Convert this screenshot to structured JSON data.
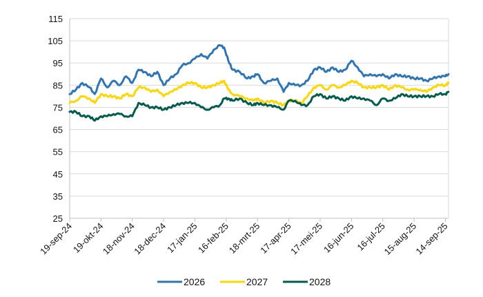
{
  "chart_data": {
    "type": "line",
    "title": "",
    "xlabel": "",
    "ylabel": "",
    "ylim": [
      25,
      115
    ],
    "yticks": [
      25,
      35,
      45,
      55,
      65,
      75,
      85,
      95,
      105,
      115
    ],
    "xlim": [
      "2024-09-19",
      "2025-09-17"
    ],
    "xtick_dates": [
      "2024-09-19",
      "2024-10-19",
      "2024-11-18",
      "2024-12-18",
      "2025-01-17",
      "2025-02-16",
      "2025-03-18",
      "2025-04-17",
      "2025-05-17",
      "2025-06-16",
      "2025-07-16",
      "2025-08-15",
      "2025-09-14"
    ],
    "xtick_labels": [
      "19-sep-24",
      "19-okt-24",
      "18-nov-24",
      "18-dec-24",
      "17-jan-25",
      "16-feb-25",
      "18-mrt-25",
      "17-apr-25",
      "17-mei-25",
      "16-jun-25",
      "16-jul-25",
      "15-aug-25",
      "14-sep-25"
    ],
    "grid": "horizontal",
    "legend_position": "bottom",
    "series": [
      {
        "name": "2026",
        "color": "#2e75b6",
        "points": [
          [
            "2024-09-19",
            81
          ],
          [
            "2024-09-25",
            83
          ],
          [
            "2024-10-01",
            86
          ],
          [
            "2024-10-08",
            84
          ],
          [
            "2024-10-13",
            81
          ],
          [
            "2024-10-19",
            88
          ],
          [
            "2024-10-25",
            84
          ],
          [
            "2024-10-31",
            87
          ],
          [
            "2024-11-06",
            85
          ],
          [
            "2024-11-12",
            89
          ],
          [
            "2024-11-18",
            86
          ],
          [
            "2024-11-24",
            92
          ],
          [
            "2024-11-30",
            91
          ],
          [
            "2024-12-06",
            89
          ],
          [
            "2024-12-12",
            91
          ],
          [
            "2024-12-18",
            85
          ],
          [
            "2024-12-24",
            88
          ],
          [
            "2024-12-30",
            90
          ],
          [
            "2025-01-05",
            94
          ],
          [
            "2025-01-11",
            95
          ],
          [
            "2025-01-17",
            97
          ],
          [
            "2025-01-23",
            99
          ],
          [
            "2025-01-29",
            97
          ],
          [
            "2025-02-04",
            101
          ],
          [
            "2025-02-10",
            103
          ],
          [
            "2025-02-14",
            102
          ],
          [
            "2025-02-18",
            96
          ],
          [
            "2025-02-22",
            92
          ],
          [
            "2025-03-01",
            91
          ],
          [
            "2025-03-08",
            88
          ],
          [
            "2025-03-14",
            89
          ],
          [
            "2025-03-18",
            90
          ],
          [
            "2025-03-24",
            86
          ],
          [
            "2025-03-31",
            87
          ],
          [
            "2025-04-06",
            88
          ],
          [
            "2025-04-12",
            82
          ],
          [
            "2025-04-17",
            86
          ],
          [
            "2025-04-23",
            85
          ],
          [
            "2025-04-29",
            85
          ],
          [
            "2025-05-05",
            87
          ],
          [
            "2025-05-11",
            92
          ],
          [
            "2025-05-17",
            93
          ],
          [
            "2025-05-23",
            91
          ],
          [
            "2025-05-29",
            93
          ],
          [
            "2025-06-04",
            91
          ],
          [
            "2025-06-10",
            92
          ],
          [
            "2025-06-16",
            96
          ],
          [
            "2025-06-22",
            93
          ],
          [
            "2025-06-28",
            89
          ],
          [
            "2025-07-04",
            90
          ],
          [
            "2025-07-10",
            89
          ],
          [
            "2025-07-16",
            90
          ],
          [
            "2025-07-22",
            88
          ],
          [
            "2025-07-28",
            90
          ],
          [
            "2025-08-03",
            89
          ],
          [
            "2025-08-09",
            89
          ],
          [
            "2025-08-15",
            88
          ],
          [
            "2025-08-21",
            88
          ],
          [
            "2025-08-27",
            87
          ],
          [
            "2025-09-02",
            88
          ],
          [
            "2025-09-08",
            89
          ],
          [
            "2025-09-14",
            89
          ],
          [
            "2025-09-17",
            90
          ]
        ]
      },
      {
        "name": "2027",
        "color": "#ffd700",
        "points": [
          [
            "2024-09-19",
            77
          ],
          [
            "2024-09-25",
            78
          ],
          [
            "2024-10-01",
            80
          ],
          [
            "2024-10-08",
            79
          ],
          [
            "2024-10-13",
            77
          ],
          [
            "2024-10-19",
            81
          ],
          [
            "2024-10-25",
            80
          ],
          [
            "2024-10-31",
            80
          ],
          [
            "2024-11-06",
            79
          ],
          [
            "2024-11-12",
            81
          ],
          [
            "2024-11-18",
            80
          ],
          [
            "2024-11-24",
            84
          ],
          [
            "2024-11-30",
            84
          ],
          [
            "2024-12-06",
            82
          ],
          [
            "2024-12-12",
            83
          ],
          [
            "2024-12-18",
            80
          ],
          [
            "2024-12-24",
            82
          ],
          [
            "2024-12-30",
            83
          ],
          [
            "2025-01-05",
            85
          ],
          [
            "2025-01-11",
            86
          ],
          [
            "2025-01-17",
            86
          ],
          [
            "2025-01-23",
            84
          ],
          [
            "2025-01-29",
            84
          ],
          [
            "2025-02-04",
            85
          ],
          [
            "2025-02-10",
            86
          ],
          [
            "2025-02-14",
            87
          ],
          [
            "2025-02-18",
            83
          ],
          [
            "2025-02-22",
            81
          ],
          [
            "2025-03-01",
            80
          ],
          [
            "2025-03-08",
            79
          ],
          [
            "2025-03-14",
            78
          ],
          [
            "2025-03-18",
            79
          ],
          [
            "2025-03-24",
            77
          ],
          [
            "2025-03-31",
            78
          ],
          [
            "2025-04-06",
            77
          ],
          [
            "2025-04-12",
            76
          ],
          [
            "2025-04-17",
            78
          ],
          [
            "2025-04-23",
            78
          ],
          [
            "2025-04-29",
            77
          ],
          [
            "2025-05-05",
            80
          ],
          [
            "2025-05-11",
            84
          ],
          [
            "2025-05-17",
            85
          ],
          [
            "2025-05-23",
            83
          ],
          [
            "2025-05-29",
            85
          ],
          [
            "2025-06-04",
            84
          ],
          [
            "2025-06-10",
            85
          ],
          [
            "2025-06-16",
            87
          ],
          [
            "2025-06-22",
            86
          ],
          [
            "2025-06-28",
            84
          ],
          [
            "2025-07-04",
            84
          ],
          [
            "2025-07-10",
            84
          ],
          [
            "2025-07-16",
            85
          ],
          [
            "2025-07-22",
            83
          ],
          [
            "2025-07-28",
            85
          ],
          [
            "2025-08-03",
            84
          ],
          [
            "2025-08-09",
            83
          ],
          [
            "2025-08-15",
            83
          ],
          [
            "2025-08-21",
            83
          ],
          [
            "2025-08-27",
            82
          ],
          [
            "2025-09-02",
            84
          ],
          [
            "2025-09-08",
            85
          ],
          [
            "2025-09-14",
            85
          ],
          [
            "2025-09-17",
            86
          ]
        ]
      },
      {
        "name": "2028",
        "color": "#005c4b",
        "points": [
          [
            "2024-09-19",
            73
          ],
          [
            "2024-09-25",
            73
          ],
          [
            "2024-10-01",
            71
          ],
          [
            "2024-10-08",
            71
          ],
          [
            "2024-10-13",
            69
          ],
          [
            "2024-10-19",
            71
          ],
          [
            "2024-10-25",
            71
          ],
          [
            "2024-10-31",
            72
          ],
          [
            "2024-11-06",
            72
          ],
          [
            "2024-11-12",
            71
          ],
          [
            "2024-11-18",
            71
          ],
          [
            "2024-11-24",
            77
          ],
          [
            "2024-11-30",
            76
          ],
          [
            "2024-12-06",
            75
          ],
          [
            "2024-12-12",
            75
          ],
          [
            "2024-12-18",
            74
          ],
          [
            "2024-12-24",
            75
          ],
          [
            "2024-12-30",
            76
          ],
          [
            "2025-01-05",
            77
          ],
          [
            "2025-01-11",
            77
          ],
          [
            "2025-01-17",
            77
          ],
          [
            "2025-01-23",
            75
          ],
          [
            "2025-01-29",
            74
          ],
          [
            "2025-02-04",
            75
          ],
          [
            "2025-02-10",
            76
          ],
          [
            "2025-02-14",
            79
          ],
          [
            "2025-02-18",
            79
          ],
          [
            "2025-02-22",
            78
          ],
          [
            "2025-03-01",
            79
          ],
          [
            "2025-03-08",
            77
          ],
          [
            "2025-03-14",
            76
          ],
          [
            "2025-03-18",
            77
          ],
          [
            "2025-03-24",
            76
          ],
          [
            "2025-03-31",
            76
          ],
          [
            "2025-04-06",
            75
          ],
          [
            "2025-04-12",
            74
          ],
          [
            "2025-04-17",
            78
          ],
          [
            "2025-04-23",
            78
          ],
          [
            "2025-04-29",
            76
          ],
          [
            "2025-05-05",
            76
          ],
          [
            "2025-05-11",
            80
          ],
          [
            "2025-05-17",
            81
          ],
          [
            "2025-05-23",
            79
          ],
          [
            "2025-05-29",
            80
          ],
          [
            "2025-06-04",
            79
          ],
          [
            "2025-06-10",
            78
          ],
          [
            "2025-06-16",
            80
          ],
          [
            "2025-06-22",
            79
          ],
          [
            "2025-06-28",
            79
          ],
          [
            "2025-07-04",
            78
          ],
          [
            "2025-07-10",
            76
          ],
          [
            "2025-07-16",
            79
          ],
          [
            "2025-07-22",
            78
          ],
          [
            "2025-07-28",
            79
          ],
          [
            "2025-08-03",
            81
          ],
          [
            "2025-08-09",
            80
          ],
          [
            "2025-08-15",
            80
          ],
          [
            "2025-08-21",
            80
          ],
          [
            "2025-08-27",
            80
          ],
          [
            "2025-09-02",
            80
          ],
          [
            "2025-09-08",
            81
          ],
          [
            "2025-09-14",
            81
          ],
          [
            "2025-09-17",
            82
          ]
        ]
      }
    ]
  }
}
